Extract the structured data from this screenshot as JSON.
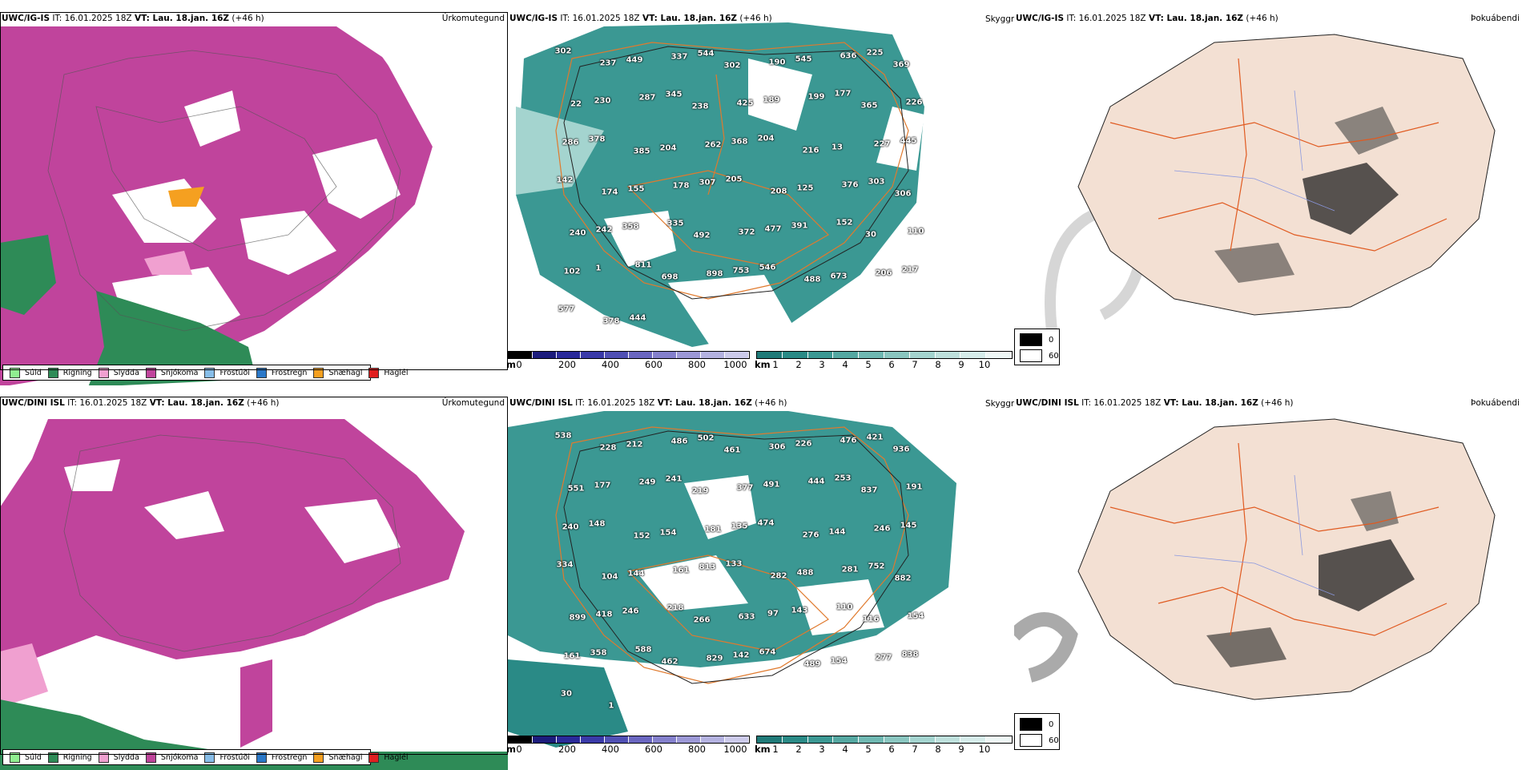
{
  "top_row": {
    "precip_panel": {
      "model": "UWC/IG-IS",
      "it_label": "IT: 16.01.2025 18Z",
      "vt_label": "VT: Lau. 18.jan. 16Z",
      "lead": "(+46 h)",
      "title": "Úrkomutegund"
    },
    "cloud_panel": {
      "model": "UWC/IG-IS",
      "it_label": "IT: 16.01.2025 18Z",
      "vt_label": "VT: Lau. 18.jan. 16Z",
      "lead": "(+46 h)",
      "title": "Skyggni",
      "labels": [
        "302",
        "237",
        "449",
        "337",
        "544",
        "302",
        "190",
        "545",
        "636",
        "225",
        "369",
        "22",
        "230",
        "287",
        "345",
        "238",
        "425",
        "189",
        "199",
        "177",
        "365",
        "226",
        "286",
        "378",
        "385",
        "204",
        "262",
        "368",
        "204",
        "216",
        "13",
        "227",
        "445",
        "142",
        "174",
        "155",
        "178",
        "307",
        "205",
        "208",
        "125",
        "376",
        "303",
        "306",
        "240",
        "242",
        "358",
        "335",
        "492",
        "372",
        "477",
        "391",
        "152",
        "30",
        "110",
        "102",
        "1",
        "811",
        "698",
        "898",
        "753",
        "546",
        "488",
        "673",
        "206",
        "217",
        "577",
        "378",
        "444"
      ]
    },
    "vis_panel": {
      "model": "UWC/IG-IS",
      "it_label": "IT: 16.01.2025 18Z",
      "vt_label": "VT: Lau. 18.jan. 16Z",
      "lead": "(+46 h)",
      "title": "Þokuábendi"
    }
  },
  "bottom_row": {
    "precip_panel": {
      "model": "UWC/DINI ISL",
      "it_label": "IT: 16.01.2025 18Z",
      "vt_label": "VT: Lau. 18.jan. 16Z",
      "lead": "(+46 h)",
      "title": "Úrkomutegund"
    },
    "cloud_panel": {
      "model": "UWC/DINI ISL",
      "it_label": "IT: 16.01.2025 18Z",
      "vt_label": "VT: Lau. 18.jan. 16Z",
      "lead": "(+46 h)",
      "title": "Skyggni",
      "labels": [
        "538",
        "228",
        "212",
        "486",
        "502",
        "461",
        "306",
        "226",
        "476",
        "421",
        "936",
        "551",
        "177",
        "249",
        "241",
        "219",
        "377",
        "491",
        "444",
        "253",
        "837",
        "191",
        "240",
        "148",
        "152",
        "154",
        "181",
        "135",
        "474",
        "276",
        "144",
        "246",
        "145",
        "334",
        "104",
        "144",
        "161",
        "813",
        "133",
        "282",
        "488",
        "281",
        "752",
        "882",
        "899",
        "418",
        "246",
        "218",
        "266",
        "633",
        "97",
        "143",
        "110",
        "116",
        "154",
        "161",
        "358",
        "588",
        "462",
        "829",
        "142",
        "674",
        "489",
        "154",
        "277",
        "838",
        "30",
        "1"
      ]
    },
    "vis_panel": {
      "model": "UWC/DINI ISL",
      "it_label": "IT: 16.01.2025 18Z",
      "vt_label": "VT: Lau. 18.jan. 16Z",
      "lead": "(+46 h)",
      "title": "Þokuábendi"
    }
  },
  "precip_legend": [
    {
      "label": "Súld",
      "color": "#90ee90"
    },
    {
      "label": "Rigning",
      "color": "#2e8b57"
    },
    {
      "label": "Slydda",
      "color": "#f0a0d0"
    },
    {
      "label": "Snjókoma",
      "color": "#c0449c"
    },
    {
      "label": "Frostúði",
      "color": "#87bde8"
    },
    {
      "label": "Frostregn",
      "color": "#2a78c8"
    },
    {
      "label": "Snæhagl",
      "color": "#f5a020"
    },
    {
      "label": "Haglél",
      "color": "#e02020"
    }
  ],
  "cloudbase_scale": {
    "unit": "m",
    "ticks": [
      "0",
      "200",
      "400",
      "600",
      "800",
      "1000"
    ],
    "colors": [
      "#000000",
      "#1c1c7c",
      "#2a2a9a",
      "#3a3aa8",
      "#5050b4",
      "#6a66c0",
      "#8480cc",
      "#9c98d6",
      "#b4b2e0",
      "#cccaea"
    ]
  },
  "visibility_scale": {
    "unit": "km",
    "ticks": [
      "1",
      "2",
      "3",
      "4",
      "5",
      "6",
      "7",
      "8",
      "9",
      "10"
    ],
    "colors": [
      "#1f7a78",
      "#2a8a86",
      "#3b9893",
      "#55a8a2",
      "#6fb8b2",
      "#8ac6c0",
      "#a4d4cf",
      "#bee0dc",
      "#d6ecea",
      "#eef7f6"
    ]
  },
  "fog_legend": [
    {
      "label": "0",
      "color": "#000000"
    },
    {
      "label": "60",
      "color": "#ffffff"
    }
  ]
}
